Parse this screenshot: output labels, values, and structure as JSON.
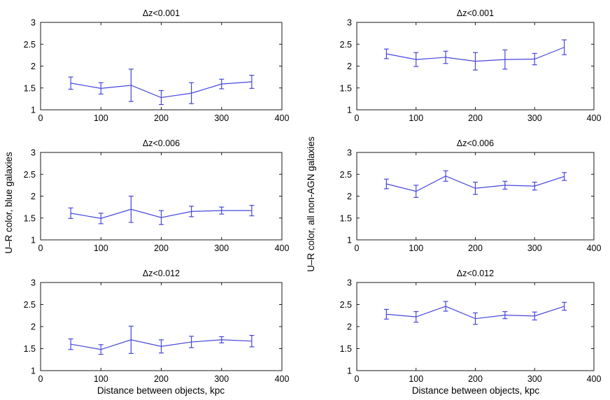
{
  "figure": {
    "background": "#ffffff",
    "line_color": "#4646dc",
    "axis_color": "#1a1a1a",
    "xlabel": "Distance between objects, kpc",
    "ylabel_left": "U–R color, blue galaxies",
    "ylabel_right": "U–R color, all non-AGN galaxies"
  },
  "chart_data": [
    {
      "type": "line",
      "position": "top-left",
      "title": "Δz<0.001",
      "x": [
        50,
        100,
        150,
        200,
        250,
        300,
        350
      ],
      "y": [
        1.61,
        1.49,
        1.56,
        1.28,
        1.38,
        1.59,
        1.64
      ],
      "yerr": [
        0.14,
        0.13,
        0.37,
        0.16,
        0.24,
        0.11,
        0.15
      ],
      "xlim": [
        0,
        400
      ],
      "ylim": [
        1,
        3
      ],
      "xticks": [
        0,
        100,
        200,
        300,
        400
      ],
      "yticks": [
        1,
        1.5,
        2,
        2.5,
        3
      ],
      "grid": false,
      "legend": null
    },
    {
      "type": "line",
      "position": "top-right",
      "title": "Δz<0.001",
      "x": [
        50,
        100,
        150,
        200,
        250,
        300,
        350
      ],
      "y": [
        2.28,
        2.15,
        2.2,
        2.11,
        2.15,
        2.16,
        2.43
      ],
      "yerr": [
        0.11,
        0.16,
        0.14,
        0.2,
        0.22,
        0.13,
        0.17
      ],
      "xlim": [
        0,
        400
      ],
      "ylim": [
        1,
        3
      ],
      "xticks": [
        0,
        100,
        200,
        300,
        400
      ],
      "yticks": [
        1,
        1.5,
        2,
        2.5,
        3
      ],
      "grid": false,
      "legend": null
    },
    {
      "type": "line",
      "position": "middle-left",
      "title": "Δz<0.006",
      "x": [
        50,
        100,
        150,
        200,
        250,
        300,
        350
      ],
      "y": [
        1.61,
        1.49,
        1.7,
        1.51,
        1.65,
        1.67,
        1.67
      ],
      "yerr": [
        0.12,
        0.12,
        0.3,
        0.16,
        0.12,
        0.08,
        0.12
      ],
      "xlim": [
        0,
        400
      ],
      "ylim": [
        1,
        3
      ],
      "xticks": [
        0,
        100,
        200,
        300,
        400
      ],
      "yticks": [
        1,
        1.5,
        2,
        2.5,
        3
      ],
      "grid": false,
      "legend": null
    },
    {
      "type": "line",
      "position": "middle-right",
      "title": "Δz<0.006",
      "x": [
        50,
        100,
        150,
        200,
        250,
        300,
        350
      ],
      "y": [
        2.28,
        2.11,
        2.46,
        2.18,
        2.25,
        2.23,
        2.45
      ],
      "yerr": [
        0.11,
        0.14,
        0.12,
        0.14,
        0.09,
        0.09,
        0.09
      ],
      "xlim": [
        0,
        400
      ],
      "ylim": [
        1,
        3
      ],
      "xticks": [
        0,
        100,
        200,
        300,
        400
      ],
      "yticks": [
        1,
        1.5,
        2,
        2.5,
        3
      ],
      "grid": false,
      "legend": null
    },
    {
      "type": "line",
      "position": "bottom-left",
      "title": "Δz<0.012",
      "x": [
        50,
        100,
        150,
        200,
        250,
        300,
        350
      ],
      "y": [
        1.6,
        1.48,
        1.7,
        1.55,
        1.65,
        1.7,
        1.67
      ],
      "yerr": [
        0.12,
        0.11,
        0.31,
        0.15,
        0.13,
        0.07,
        0.13
      ],
      "xlim": [
        0,
        400
      ],
      "ylim": [
        1,
        3
      ],
      "xticks": [
        0,
        100,
        200,
        300,
        400
      ],
      "yticks": [
        1,
        1.5,
        2,
        2.5,
        3
      ],
      "grid": false,
      "legend": null
    },
    {
      "type": "line",
      "position": "bottom-right",
      "title": "Δz<0.012",
      "x": [
        50,
        100,
        150,
        200,
        250,
        300,
        350
      ],
      "y": [
        2.28,
        2.22,
        2.46,
        2.18,
        2.26,
        2.24,
        2.46
      ],
      "yerr": [
        0.11,
        0.12,
        0.11,
        0.13,
        0.08,
        0.09,
        0.09
      ],
      "xlim": [
        0,
        400
      ],
      "ylim": [
        1,
        3
      ],
      "xticks": [
        0,
        100,
        200,
        300,
        400
      ],
      "yticks": [
        1,
        1.5,
        2,
        2.5,
        3
      ],
      "grid": false,
      "legend": null
    }
  ]
}
